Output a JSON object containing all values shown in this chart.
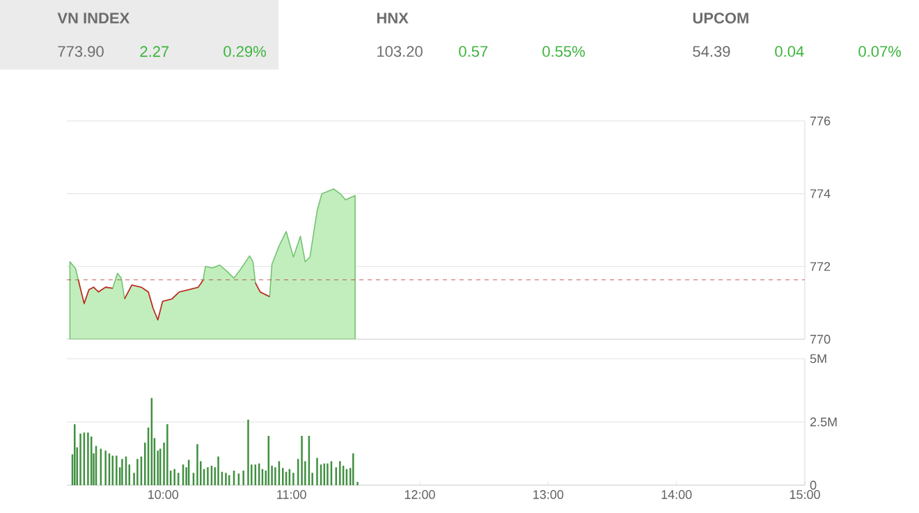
{
  "chart_data": [
    {
      "type": "other",
      "annotations": [
        "VN INDEX",
        "773.90",
        "2.27",
        "0.29%",
        "HNX",
        "103.20",
        "0.57",
        "0.55%",
        "UPCOM",
        "54.39",
        "0.04",
        "0.07%"
      ]
    },
    {
      "type": "area",
      "xlim": [
        9.25,
        15
      ],
      "ylim": [
        770,
        776
      ],
      "yticks": [
        770,
        772,
        774,
        776
      ],
      "tick_labels": "y",
      "grid": "y",
      "x": [
        9.274,
        9.318,
        9.34,
        9.385,
        9.422,
        9.459,
        9.496,
        9.552,
        9.607,
        9.644,
        9.674,
        9.7,
        9.756,
        9.83,
        9.885,
        9.922,
        9.959,
        9.996,
        10.07,
        10.126,
        10.2,
        10.274,
        10.311,
        10.33,
        10.385,
        10.441,
        10.496,
        10.552,
        10.607,
        10.674,
        10.7,
        10.719,
        10.756,
        10.83,
        10.848,
        10.904,
        10.959,
        11.015,
        11.07,
        11.107,
        11.144,
        11.2,
        11.237,
        11.33,
        11.385,
        11.422,
        11.496
      ],
      "series": [
        {
          "type": "area",
          "color": "#c2eebd",
          "values": [
            772.13,
            771.94,
            771.62,
            770.98,
            771.36,
            771.43,
            771.3,
            771.43,
            771.4,
            771.81,
            771.68,
            771.11,
            771.49,
            771.43,
            771.3,
            770.85,
            770.53,
            771.04,
            771.11,
            771.3,
            771.36,
            771.43,
            771.62,
            772.0,
            771.96,
            772.04,
            771.87,
            771.68,
            771.94,
            772.29,
            772.13,
            771.55,
            771.3,
            771.17,
            772.06,
            772.57,
            772.96,
            772.26,
            772.83,
            772.13,
            772.26,
            773.53,
            774.0,
            774.13,
            773.98,
            773.83,
            773.95
          ]
        },
        {
          "type": "line",
          "color": "#cc2222",
          "x": [
            9.34,
            9.385,
            9.422,
            9.459,
            9.496,
            9.552,
            9.607
          ],
          "values": [
            771.62,
            770.98,
            771.36,
            771.43,
            771.3,
            771.43,
            771.4
          ]
        },
        {
          "type": "line",
          "color": "#cc2222",
          "x": [
            9.7,
            9.756,
            9.83,
            9.885,
            9.922,
            9.959,
            9.996,
            10.07,
            10.126,
            10.2,
            10.274,
            10.311
          ],
          "values": [
            771.11,
            771.49,
            771.43,
            771.3,
            770.85,
            770.53,
            771.04,
            771.11,
            771.3,
            771.36,
            771.43,
            771.62
          ]
        },
        {
          "type": "line",
          "color": "#cc2222",
          "x": [
            10.719,
            10.756,
            10.83
          ],
          "values": [
            771.55,
            771.3,
            771.17
          ]
        }
      ],
      "ref_lines": [
        {
          "axis": "y",
          "value": 771.63,
          "color": "#b22222",
          "line_style": "dashed"
        }
      ]
    },
    {
      "type": "bar",
      "xlim": [
        9.25,
        15
      ],
      "ylim": [
        0,
        5
      ],
      "grid": "y",
      "xticks": [
        {
          "value": 10,
          "label": "10:00"
        },
        {
          "value": 11,
          "label": "11:00"
        },
        {
          "value": 12,
          "label": "12:00"
        },
        {
          "value": 13,
          "label": "13:00"
        },
        {
          "value": 14,
          "label": "14:00"
        },
        {
          "value": 15,
          "label": "15:00"
        }
      ],
      "yticks": [
        0,
        {
          "value": 2.5,
          "label": "2.5M"
        },
        {
          "value": 5,
          "label": "5M"
        }
      ],
      "x": [
        9.293,
        9.311,
        9.33,
        9.356,
        9.385,
        9.415,
        9.441,
        9.459,
        9.478,
        9.515,
        9.552,
        9.581,
        9.607,
        9.637,
        9.663,
        9.681,
        9.711,
        9.737,
        9.774,
        9.8,
        9.83,
        9.859,
        9.885,
        9.911,
        9.933,
        9.959,
        9.978,
        10.007,
        10.033,
        10.059,
        10.089,
        10.119,
        10.156,
        10.181,
        10.2,
        10.237,
        10.267,
        10.293,
        10.319,
        10.348,
        10.378,
        10.404,
        10.43,
        10.459,
        10.489,
        10.515,
        10.552,
        10.589,
        10.626,
        10.663,
        10.689,
        10.719,
        10.748,
        10.774,
        10.8,
        10.822,
        10.848,
        10.874,
        10.904,
        10.933,
        10.959,
        10.985,
        11.015,
        11.052,
        11.081,
        11.107,
        11.137,
        11.163,
        11.2,
        11.23,
        11.256,
        11.281,
        11.311,
        11.348,
        11.378,
        11.404,
        11.43,
        11.459,
        11.481,
        11.515
      ],
      "values": [
        1.22,
        2.41,
        1.5,
        2.04,
        2.08,
        2.08,
        1.92,
        1.26,
        1.55,
        1.44,
        1.37,
        1.26,
        1.17,
        1.17,
        0.71,
        1.04,
        1.13,
        0.82,
        0.49,
        1.04,
        1.13,
        1.68,
        2.28,
        3.45,
        1.86,
        1.37,
        1.44,
        1.68,
        2.41,
        0.58,
        0.64,
        0.49,
        0.82,
        0.71,
        1.0,
        0.49,
        1.62,
        0.95,
        0.64,
        0.71,
        0.77,
        0.71,
        1.13,
        0.53,
        0.49,
        0.4,
        0.58,
        0.46,
        0.58,
        2.59,
        0.82,
        0.82,
        0.86,
        0.64,
        0.58,
        1.95,
        0.77,
        0.71,
        0.95,
        0.68,
        0.53,
        0.64,
        0.49,
        1.04,
        1.95,
        0.95,
        1.95,
        0.49,
        1.08,
        0.82,
        0.86,
        0.86,
        0.95,
        0.71,
        0.95,
        0.77,
        0.64,
        0.68,
        1.26,
        0.13
      ],
      "color": "#3f8f3f"
    }
  ]
}
